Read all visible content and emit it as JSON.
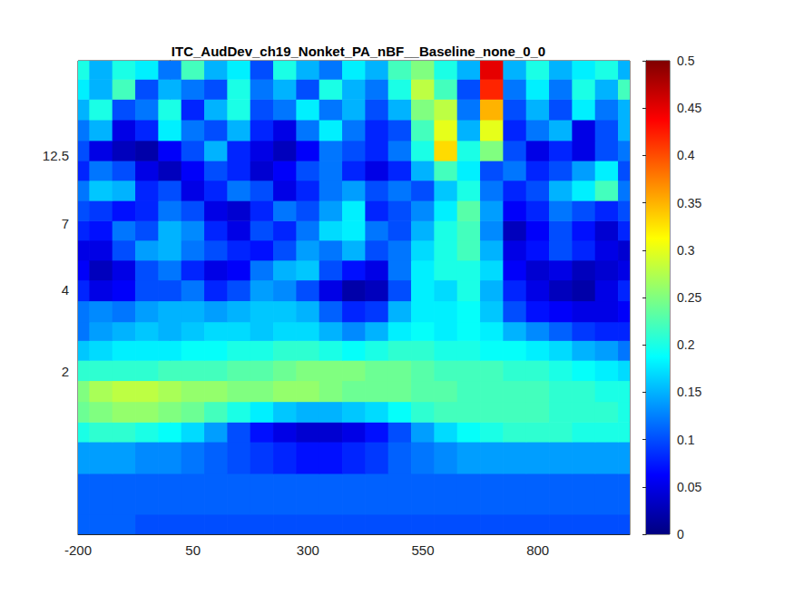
{
  "chart_data": {
    "type": "heatmap",
    "title": "ITC_AudDev_ch19_Nonket_PA_nBF__Baseline_none_0_0",
    "x": [
      -200,
      -150,
      -100,
      -50,
      0,
      50,
      100,
      150,
      200,
      250,
      300,
      350,
      400,
      450,
      500,
      550,
      600,
      650,
      700,
      750,
      800,
      850,
      900,
      950,
      1000
    ],
    "y": [
      0.5,
      0.7,
      1.0,
      1.2,
      1.4,
      1.7,
      2.0,
      2.4,
      2.8,
      3.3,
      4.0,
      4.7,
      5.6,
      6.6,
      7.8,
      9.3,
      11,
      13,
      15.5,
      18.5,
      22,
      26
    ],
    "values": [
      [
        0.11,
        0.11,
        0.11,
        0.1,
        0.1,
        0.1,
        0.1,
        0.1,
        0.1,
        0.1,
        0.1,
        0.1,
        0.1,
        0.1,
        0.1,
        0.1,
        0.1,
        0.1,
        0.1,
        0.1,
        0.1,
        0.1,
        0.1,
        0.1,
        0.1
      ],
      [
        0.11,
        0.11,
        0.11,
        0.11,
        0.11,
        0.11,
        0.11,
        0.11,
        0.11,
        0.11,
        0.11,
        0.11,
        0.11,
        0.11,
        0.11,
        0.11,
        0.11,
        0.11,
        0.11,
        0.11,
        0.11,
        0.11,
        0.11,
        0.11,
        0.11
      ],
      [
        0.14,
        0.14,
        0.14,
        0.13,
        0.13,
        0.12,
        0.11,
        0.1,
        0.09,
        0.08,
        0.07,
        0.07,
        0.08,
        0.09,
        0.11,
        0.12,
        0.13,
        0.14,
        0.14,
        0.14,
        0.14,
        0.14,
        0.14,
        0.14,
        0.14
      ],
      [
        0.2,
        0.21,
        0.21,
        0.2,
        0.19,
        0.17,
        0.14,
        0.1,
        0.07,
        0.05,
        0.04,
        0.04,
        0.05,
        0.07,
        0.1,
        0.14,
        0.17,
        0.19,
        0.2,
        0.21,
        0.21,
        0.21,
        0.2,
        0.2,
        0.2
      ],
      [
        0.24,
        0.25,
        0.26,
        0.26,
        0.25,
        0.24,
        0.22,
        0.2,
        0.18,
        0.16,
        0.15,
        0.15,
        0.16,
        0.17,
        0.19,
        0.21,
        0.22,
        0.22,
        0.22,
        0.22,
        0.22,
        0.21,
        0.21,
        0.21,
        0.2
      ],
      [
        0.25,
        0.27,
        0.28,
        0.28,
        0.27,
        0.26,
        0.26,
        0.25,
        0.25,
        0.26,
        0.26,
        0.25,
        0.24,
        0.24,
        0.24,
        0.23,
        0.23,
        0.22,
        0.22,
        0.22,
        0.22,
        0.21,
        0.21,
        0.2,
        0.2
      ],
      [
        0.21,
        0.21,
        0.21,
        0.21,
        0.22,
        0.22,
        0.22,
        0.23,
        0.23,
        0.24,
        0.25,
        0.25,
        0.25,
        0.24,
        0.24,
        0.23,
        0.22,
        0.22,
        0.22,
        0.21,
        0.21,
        0.2,
        0.19,
        0.18,
        0.17
      ],
      [
        0.16,
        0.17,
        0.18,
        0.18,
        0.18,
        0.19,
        0.19,
        0.2,
        0.2,
        0.21,
        0.21,
        0.2,
        0.19,
        0.2,
        0.21,
        0.21,
        0.2,
        0.2,
        0.19,
        0.19,
        0.18,
        0.17,
        0.15,
        0.14,
        0.12
      ],
      [
        0.12,
        0.14,
        0.15,
        0.16,
        0.15,
        0.16,
        0.17,
        0.17,
        0.16,
        0.17,
        0.17,
        0.15,
        0.13,
        0.15,
        0.18,
        0.19,
        0.18,
        0.19,
        0.18,
        0.15,
        0.13,
        0.11,
        0.09,
        0.08,
        0.08
      ],
      [
        0.12,
        0.13,
        0.12,
        0.14,
        0.15,
        0.15,
        0.14,
        0.15,
        0.16,
        0.16,
        0.15,
        0.11,
        0.08,
        0.09,
        0.15,
        0.18,
        0.18,
        0.19,
        0.16,
        0.1,
        0.07,
        0.06,
        0.05,
        0.05,
        0.06
      ],
      [
        0.08,
        0.05,
        0.06,
        0.1,
        0.1,
        0.12,
        0.08,
        0.1,
        0.14,
        0.13,
        0.1,
        0.05,
        0.02,
        0.03,
        0.1,
        0.18,
        0.17,
        0.2,
        0.15,
        0.08,
        0.05,
        0.03,
        0.02,
        0.05,
        0.08
      ],
      [
        0.06,
        0.03,
        0.05,
        0.1,
        0.12,
        0.08,
        0.05,
        0.06,
        0.12,
        0.15,
        0.16,
        0.1,
        0.07,
        0.05,
        0.12,
        0.18,
        0.2,
        0.2,
        0.17,
        0.06,
        0.04,
        0.05,
        0.03,
        0.04,
        0.05
      ],
      [
        0.05,
        0.05,
        0.1,
        0.14,
        0.15,
        0.12,
        0.1,
        0.08,
        0.07,
        0.1,
        0.14,
        0.12,
        0.15,
        0.1,
        0.12,
        0.17,
        0.2,
        0.22,
        0.15,
        0.05,
        0.07,
        0.1,
        0.08,
        0.05,
        0.04
      ],
      [
        0.08,
        0.07,
        0.12,
        0.1,
        0.15,
        0.13,
        0.08,
        0.05,
        0.1,
        0.08,
        0.12,
        0.17,
        0.18,
        0.12,
        0.1,
        0.15,
        0.2,
        0.22,
        0.13,
        0.03,
        0.06,
        0.1,
        0.07,
        0.04,
        0.08
      ],
      [
        0.1,
        0.09,
        0.07,
        0.08,
        0.12,
        0.1,
        0.05,
        0.04,
        0.08,
        0.12,
        0.1,
        0.14,
        0.18,
        0.08,
        0.1,
        0.13,
        0.18,
        0.23,
        0.14,
        0.06,
        0.08,
        0.12,
        0.1,
        0.08,
        0.1
      ],
      [
        0.12,
        0.16,
        0.15,
        0.08,
        0.1,
        0.05,
        0.08,
        0.12,
        0.1,
        0.05,
        0.08,
        0.12,
        0.14,
        0.1,
        0.12,
        0.1,
        0.16,
        0.2,
        0.12,
        0.08,
        0.1,
        0.15,
        0.18,
        0.22,
        0.12
      ],
      [
        0.08,
        0.12,
        0.1,
        0.05,
        0.03,
        0.06,
        0.1,
        0.08,
        0.04,
        0.06,
        0.1,
        0.12,
        0.08,
        0.05,
        0.08,
        0.15,
        0.22,
        0.18,
        0.1,
        0.12,
        0.08,
        0.1,
        0.14,
        0.18,
        0.1
      ],
      [
        0.1,
        0.05,
        0.03,
        0.02,
        0.06,
        0.1,
        0.15,
        0.08,
        0.05,
        0.03,
        0.06,
        0.12,
        0.1,
        0.08,
        0.12,
        0.2,
        0.33,
        0.2,
        0.25,
        0.1,
        0.05,
        0.08,
        0.05,
        0.1,
        0.12
      ],
      [
        0.12,
        0.15,
        0.05,
        0.08,
        0.18,
        0.12,
        0.1,
        0.15,
        0.08,
        0.05,
        0.12,
        0.18,
        0.12,
        0.08,
        0.1,
        0.22,
        0.3,
        0.15,
        0.3,
        0.08,
        0.12,
        0.15,
        0.05,
        0.1,
        0.15
      ],
      [
        0.15,
        0.2,
        0.1,
        0.12,
        0.2,
        0.08,
        0.15,
        0.2,
        0.1,
        0.12,
        0.18,
        0.12,
        0.15,
        0.1,
        0.15,
        0.25,
        0.28,
        0.12,
        0.35,
        0.1,
        0.15,
        0.1,
        0.18,
        0.12,
        0.15
      ],
      [
        0.18,
        0.15,
        0.22,
        0.1,
        0.15,
        0.12,
        0.1,
        0.2,
        0.12,
        0.15,
        0.1,
        0.2,
        0.15,
        0.12,
        0.2,
        0.28,
        0.22,
        0.1,
        0.42,
        0.12,
        0.18,
        0.12,
        0.2,
        0.15,
        0.22
      ],
      [
        0.2,
        0.15,
        0.2,
        0.18,
        0.12,
        0.22,
        0.15,
        0.18,
        0.1,
        0.2,
        0.15,
        0.12,
        0.18,
        0.15,
        0.22,
        0.25,
        0.2,
        0.15,
        0.45,
        0.15,
        0.2,
        0.15,
        0.18,
        0.2,
        0.15
      ]
    ],
    "xlim": [
      -200,
      1000
    ],
    "xticks": [
      -200,
      50,
      300,
      550,
      800
    ],
    "ylim": [
      0.5,
      28
    ],
    "yticks": [
      2,
      4,
      7,
      12.5
    ],
    "log": "y",
    "grid": false,
    "colorbar": {
      "range": [
        0,
        0.5
      ],
      "ticks": [
        0,
        0.05,
        0.1,
        0.15,
        0.2,
        0.25,
        0.3,
        0.35,
        0.4,
        0.45,
        0.5
      ]
    }
  }
}
